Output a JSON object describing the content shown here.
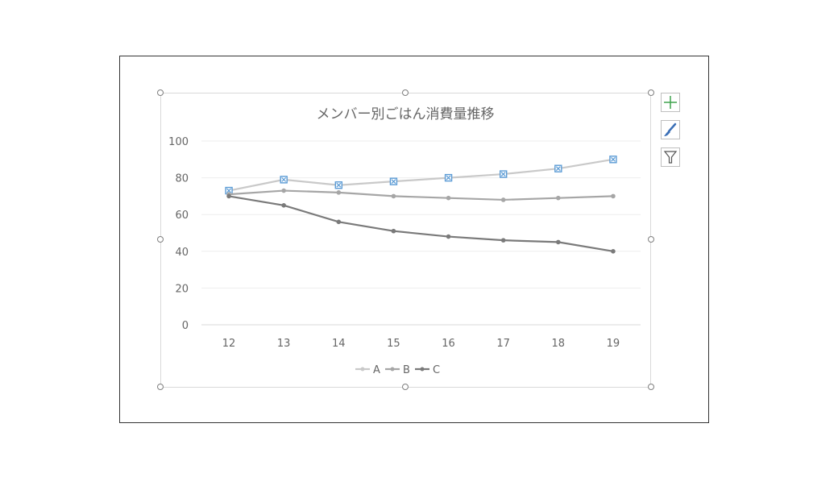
{
  "chart_data": {
    "type": "line",
    "title": "メンバー別ごはん消費量推移",
    "categories": [
      "12",
      "13",
      "14",
      "15",
      "16",
      "17",
      "18",
      "19"
    ],
    "series": [
      {
        "name": "A",
        "values": [
          73,
          79,
          76,
          78,
          80,
          82,
          85,
          90
        ],
        "color": "#c9c9c9",
        "selected": true
      },
      {
        "name": "B",
        "values": [
          71,
          73,
          72,
          70,
          69,
          68,
          69,
          70
        ],
        "color": "#a6a6a6"
      },
      {
        "name": "C",
        "values": [
          70,
          65,
          56,
          51,
          48,
          46,
          45,
          40
        ],
        "color": "#7a7a7a"
      }
    ],
    "y_ticks": [
      "0",
      "20",
      "40",
      "60",
      "80",
      "100"
    ],
    "ylim": [
      0,
      100
    ],
    "grid": true,
    "legend_position": "bottom",
    "selection_marker_color": "#5b9bd5"
  },
  "side_buttons": [
    {
      "icon": "plus-icon",
      "color": "#3fa34d"
    },
    {
      "icon": "brush-icon",
      "color": "#3b6fb6"
    },
    {
      "icon": "filter-icon",
      "color": "#555555"
    }
  ]
}
